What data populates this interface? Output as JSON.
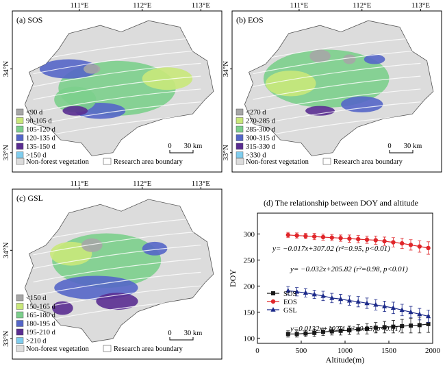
{
  "maps": [
    {
      "id": "sos",
      "label": "(a) SOS",
      "top_ticks": [
        "111°E",
        "112°E",
        "113°E"
      ],
      "left_ticks": [
        "34°N",
        "33°N"
      ],
      "legend": [
        {
          "label": "<90 d",
          "color": "#a6a6a6"
        },
        {
          "label": "90-105 d",
          "color": "#c9e87a"
        },
        {
          "label": "105-120 d",
          "color": "#7ccf8c"
        },
        {
          "label": "120-135 d",
          "color": "#5566c8"
        },
        {
          "label": "135-150 d",
          "color": "#5a2d91"
        },
        {
          "label": ">150 d",
          "color": "#7fcdee"
        }
      ],
      "scale_label": "30 km",
      "scale_zero": "0",
      "bottom_legend": [
        "Non-forest vegetation",
        "Research area boundary"
      ]
    },
    {
      "id": "eos",
      "label": "(b) EOS",
      "top_ticks": [
        "111°E",
        "112°E",
        "113°E"
      ],
      "left_ticks": [
        "34°N",
        "33°N"
      ],
      "legend": [
        {
          "label": "<270 d",
          "color": "#a6a6a6"
        },
        {
          "label": "270-285 d",
          "color": "#c9e87a"
        },
        {
          "label": "285-300 d",
          "color": "#7ccf8c"
        },
        {
          "label": "300-315 d",
          "color": "#5566c8"
        },
        {
          "label": "315-330 d",
          "color": "#5a2d91"
        },
        {
          "label": ">330 d",
          "color": "#7fcdee"
        }
      ],
      "scale_label": "30 km",
      "scale_zero": "0",
      "bottom_legend": [
        "Non-forest vegetation",
        "Research area boundary"
      ]
    },
    {
      "id": "gsl",
      "label": "(c) GSL",
      "top_ticks": [
        "111°E",
        "112°E",
        "113°E"
      ],
      "left_ticks": [
        "34°N",
        "33°N"
      ],
      "legend": [
        {
          "label": "<150 d",
          "color": "#a6a6a6"
        },
        {
          "label": "150-165 d",
          "color": "#c9e87a"
        },
        {
          "label": "165-180 d",
          "color": "#7ccf8c"
        },
        {
          "label": "180-195 d",
          "color": "#5566c8"
        },
        {
          "label": "195-210 d",
          "color": "#5a2d91"
        },
        {
          "label": ">210 d",
          "color": "#7fcdee"
        }
      ],
      "scale_label": "30 km",
      "scale_zero": "0",
      "bottom_legend": [
        "Non-forest vegetation",
        "Research area boundary"
      ]
    }
  ],
  "colors": {
    "nonforest": "#dcdcdc",
    "sos": "#1a1a1a",
    "eos": "#e0262a",
    "gsl": "#1c2a8a"
  },
  "chart_data": {
    "type": "line",
    "title": "(d) The relationship between DOY and altitude",
    "xlabel": "Altitude(m)",
    "ylabel": "DOY",
    "xlim": [
      0,
      2000
    ],
    "ylim": [
      90,
      340
    ],
    "xticks": [
      0,
      500,
      1000,
      1500,
      2000
    ],
    "yticks": [
      100,
      150,
      200,
      250,
      300
    ],
    "x": [
      350,
      450,
      550,
      650,
      750,
      850,
      950,
      1050,
      1150,
      1250,
      1350,
      1450,
      1550,
      1650,
      1750,
      1850,
      1950
    ],
    "series": [
      {
        "name": "SOS",
        "color": "#1a1a1a",
        "marker": "square",
        "values": [
          108,
          108,
          109,
          110,
          112,
          113,
          114,
          115,
          117,
          118,
          120,
          121,
          122,
          123,
          124,
          125,
          127
        ],
        "errors": [
          6,
          6,
          6,
          7,
          7,
          7,
          8,
          8,
          9,
          10,
          10,
          11,
          12,
          13,
          14,
          15,
          16
        ]
      },
      {
        "name": "EOS",
        "color": "#e0262a",
        "marker": "circle",
        "values": [
          298,
          297,
          296,
          295,
          294,
          293,
          292,
          291,
          290,
          289,
          288,
          286,
          284,
          282,
          279,
          276,
          273
        ],
        "errors": [
          5,
          5,
          5,
          6,
          6,
          6,
          6,
          7,
          7,
          7,
          8,
          8,
          9,
          10,
          10,
          11,
          12
        ]
      },
      {
        "name": "GSL",
        "color": "#1c2a8a",
        "marker": "triangle",
        "values": [
          191,
          189,
          187,
          184,
          181,
          177,
          175,
          172,
          170,
          167,
          164,
          161,
          158,
          154,
          150,
          146,
          142
        ],
        "errors": [
          8,
          8,
          8,
          8,
          9,
          9,
          9,
          9,
          10,
          10,
          10,
          10,
          11,
          11,
          11,
          11,
          12
        ]
      }
    ],
    "annotations": [
      {
        "text": "y= −0.017x+307.02 (r²=0.95, p<0.01)",
        "series": "EOS"
      },
      {
        "text": "y= −0.032x+205.82 (r²=0.98, p<0.01)",
        "series": "GSL"
      },
      {
        "text": "y=0.0132x+102.4 (r²=0.95, p<0.01)",
        "series": "SOS"
      }
    ],
    "legend_placement": "left-middle",
    "grid": false
  }
}
